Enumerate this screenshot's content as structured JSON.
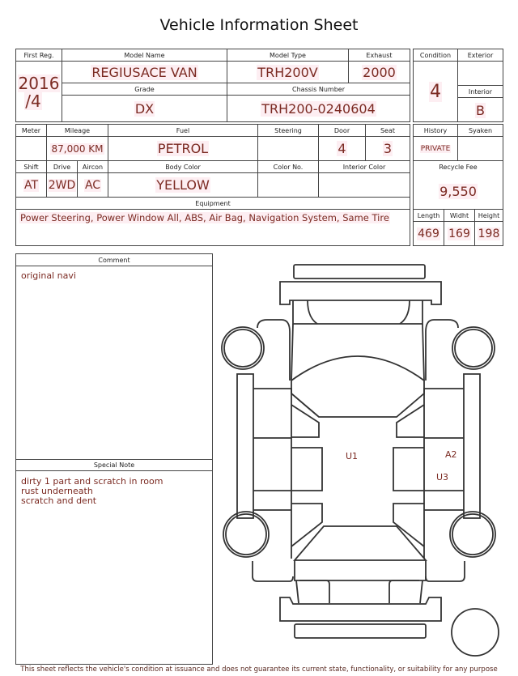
{
  "title": "Vehicle Information Sheet",
  "labels": {
    "first_reg": "First Reg.",
    "model_name": "Model Name",
    "model_type": "Model Type",
    "exhaust": "Exhaust",
    "grade": "Grade",
    "chassis_number": "Chassis Number",
    "condition": "Condition",
    "exterior": "Exterior",
    "interior": "Interior",
    "meter": "Meter",
    "mileage": "Mileage",
    "fuel": "Fuel",
    "steering": "Steering",
    "door": "Door",
    "seat": "Seat",
    "shift": "Shift",
    "drive": "Drive",
    "aircon": "Aircon",
    "body_color": "Body Color",
    "color_no": "Color No.",
    "interior_color": "Interior Color",
    "equipment": "Equipment",
    "history": "History",
    "syaken": "Syaken",
    "recycle_fee": "Recycle Fee",
    "length": "Length",
    "width": "Widht",
    "height": "Height",
    "comment": "Comment",
    "special_note": "Special Note"
  },
  "values": {
    "first_reg_year": "2016",
    "first_reg_month": "/4",
    "model_name": "REGIUSACE VAN",
    "model_type": "TRH200V",
    "exhaust": "2000",
    "grade": "DX",
    "chassis_number": "TRH200-0240604",
    "condition": "4",
    "exterior": "",
    "interior": "B",
    "meter": "",
    "mileage": "87,000 KM",
    "fuel": "PETROL",
    "steering": "",
    "door": "4",
    "seat": "3",
    "shift": "AT",
    "drive": "2WD",
    "aircon": "AC",
    "body_color": "YELLOW",
    "color_no": "",
    "interior_color": "",
    "equipment": "Power Steering, Power Window  All, ABS, Air Bag, Navigation System, Same Tire",
    "history": "PRIVATE",
    "syaken": "",
    "recycle_fee": "9,550",
    "length": "469",
    "width": "169",
    "height": "198"
  },
  "comment": [
    "original navi"
  ],
  "special_note": [
    "dirty 1 part and scratch in room",
    "rust underneath",
    "scratch and dent"
  ],
  "damage_marks": [
    {
      "code": "U1",
      "area": "roof"
    },
    {
      "code": "A2",
      "area": "right rear door"
    },
    {
      "code": "U3",
      "area": "right rear door"
    }
  ],
  "footer": "This sheet reflects the vehicle's condition at issuance and does not guarantee its current state, functionality, or suitability for any purpose",
  "colors": {
    "value_text": "#7b2a22",
    "highlight": "#fdeef2",
    "lines": "#444444"
  }
}
